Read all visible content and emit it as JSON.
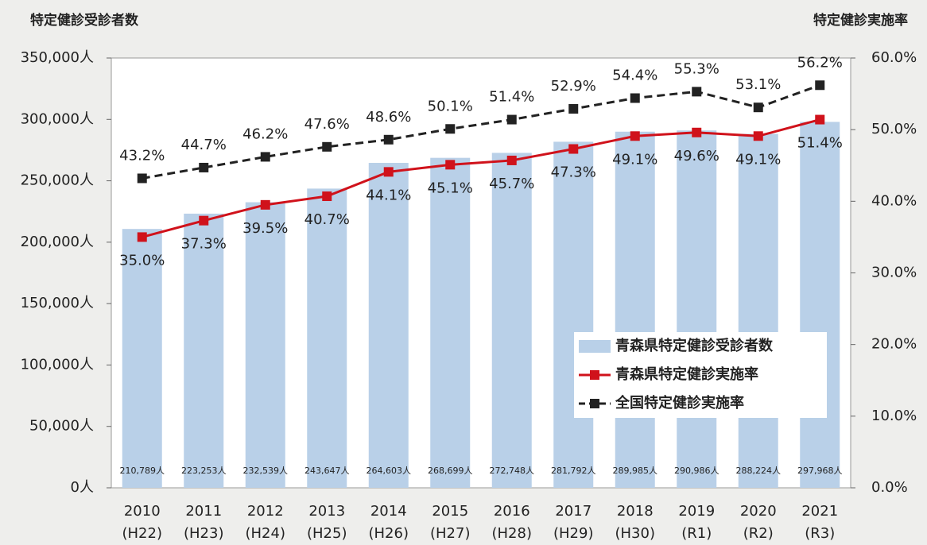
{
  "chart_data": {
    "type": "bar-line",
    "y_axis_title": "特定健診受診者数",
    "y2_axis_title": "特定健診実施率",
    "categories": [
      "2010",
      "2011",
      "2012",
      "2013",
      "2014",
      "2015",
      "2016",
      "2017",
      "2018",
      "2019",
      "2020",
      "2021"
    ],
    "category_notes": [
      "(H22)",
      "(H23)",
      "(H24)",
      "(H25)",
      "(H26)",
      "(H27)",
      "(H28)",
      "(H29)",
      "(H30)",
      "(R1)",
      "(R2)",
      "(R3)"
    ],
    "ylim": [
      0,
      350000
    ],
    "yticks": [
      {
        "value": 0,
        "label": "0人"
      },
      {
        "value": 50000,
        "label": "50,000人"
      },
      {
        "value": 100000,
        "label": "100,000人"
      },
      {
        "value": 150000,
        "label": "150,000人"
      },
      {
        "value": 200000,
        "label": "200,000人"
      },
      {
        "value": 250000,
        "label": "250,000人"
      },
      {
        "value": 300000,
        "label": "300,000人"
      },
      {
        "value": 350000,
        "label": "350,000人"
      }
    ],
    "y2lim": [
      0,
      60
    ],
    "y2ticks": [
      {
        "value": 0,
        "label": "0.0%"
      },
      {
        "value": 10,
        "label": "10.0%"
      },
      {
        "value": 20,
        "label": "20.0%"
      },
      {
        "value": 30,
        "label": "30.0%"
      },
      {
        "value": 40,
        "label": "40.0%"
      },
      {
        "value": 50,
        "label": "50.0%"
      },
      {
        "value": 60,
        "label": "60.0%"
      }
    ],
    "legend": "lower right",
    "series": [
      {
        "name": "青森県特定健診受診者数",
        "type": "bar",
        "color": "#b9d0e8",
        "values": [
          210789,
          223253,
          232539,
          243647,
          264603,
          268699,
          272748,
          281792,
          289985,
          290986,
          288224,
          297968
        ],
        "value_labels": [
          "210,789人",
          "223,253人",
          "232,539人",
          "243,647人",
          "264,603人",
          "268,699人",
          "272,748人",
          "281,792人",
          "289,985人",
          "290,986人",
          "288,224人",
          "297,968人"
        ]
      },
      {
        "name": "青森県特定健診実施率",
        "type": "line",
        "axis": "y2",
        "color": "#d0121b",
        "dash": false,
        "values": [
          35.0,
          37.3,
          39.5,
          40.7,
          44.1,
          45.1,
          45.7,
          47.3,
          49.1,
          49.6,
          49.1,
          51.4
        ],
        "value_labels": [
          "35.0%",
          "37.3%",
          "39.5%",
          "40.7%",
          "44.1%",
          "45.1%",
          "45.7%",
          "47.3%",
          "49.1%",
          "49.6%",
          "49.1%",
          "51.4%"
        ]
      },
      {
        "name": "全国特定健診実施率",
        "type": "line",
        "axis": "y2",
        "color": "#222222",
        "dash": true,
        "values": [
          43.2,
          44.7,
          46.2,
          47.6,
          48.6,
          50.1,
          51.4,
          52.9,
          54.4,
          55.3,
          53.1,
          56.2
        ],
        "value_labels": [
          "43.2%",
          "44.7%",
          "46.2%",
          "47.6%",
          "48.6%",
          "50.1%",
          "51.4%",
          "52.9%",
          "54.4%",
          "55.3%",
          "53.1%",
          "56.2%"
        ]
      }
    ]
  }
}
